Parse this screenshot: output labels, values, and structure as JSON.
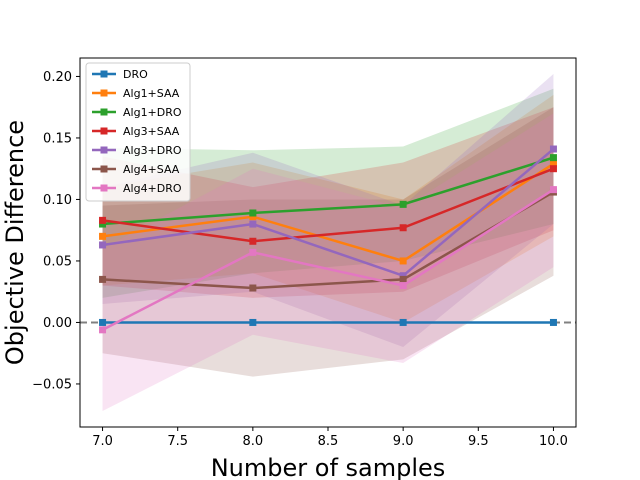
{
  "chart_data": {
    "type": "line",
    "title": "",
    "xlabel": "Number of samples",
    "ylabel": "Objective Difference",
    "xlim": [
      6.85,
      10.15
    ],
    "ylim": [
      -0.085,
      0.215
    ],
    "x": [
      7.0,
      8.0,
      9.0,
      10.0
    ],
    "x_ticks": [
      "7.0",
      "7.5",
      "8.0",
      "8.5",
      "9.0",
      "9.5",
      "10.0"
    ],
    "y_ticks": [
      "−0.05",
      "0.00",
      "0.05",
      "0.10",
      "0.15",
      "0.20"
    ],
    "grid": false,
    "legend_position": "top-left",
    "reference_line": {
      "y": 0.0,
      "style": "dashed",
      "color": "#808080"
    },
    "series": [
      {
        "name": "DRO",
        "color": "#1f77b4",
        "values": [
          0.0,
          0.0,
          0.0,
          0.0
        ],
        "lower": [
          0.0,
          0.0,
          0.0,
          0.0
        ],
        "upper": [
          0.0,
          0.0,
          0.0,
          0.0
        ]
      },
      {
        "name": "Alg1+SAA",
        "color": "#ff7f0e",
        "values": [
          0.07,
          0.086,
          0.05,
          0.129
        ],
        "lower": [
          0.03,
          0.04,
          0.0,
          0.07
        ],
        "upper": [
          0.11,
          0.13,
          0.1,
          0.185
        ]
      },
      {
        "name": "Alg1+DRO",
        "color": "#2ca02c",
        "values": [
          0.08,
          0.089,
          0.096,
          0.134
        ],
        "lower": [
          0.02,
          0.04,
          0.05,
          0.08
        ],
        "upper": [
          0.142,
          0.14,
          0.143,
          0.19
        ]
      },
      {
        "name": "Alg3+SAA",
        "color": "#d62728",
        "values": [
          0.083,
          0.066,
          0.077,
          0.125
        ],
        "lower": [
          0.03,
          0.02,
          0.025,
          0.075
        ],
        "upper": [
          0.135,
          0.11,
          0.13,
          0.175
        ]
      },
      {
        "name": "Alg3+DRO",
        "color": "#9467bd",
        "values": [
          0.063,
          0.08,
          0.038,
          0.141
        ],
        "lower": [
          0.015,
          0.025,
          -0.02,
          0.08
        ],
        "upper": [
          0.11,
          0.138,
          0.095,
          0.202
        ]
      },
      {
        "name": "Alg4+SAA",
        "color": "#8c564b",
        "values": [
          0.035,
          0.028,
          0.035,
          0.106
        ],
        "lower": [
          -0.025,
          -0.044,
          -0.03,
          0.038
        ],
        "upper": [
          0.095,
          0.1,
          0.1,
          0.175
        ]
      },
      {
        "name": "Alg4+DRO",
        "color": "#e377c2",
        "values": [
          -0.006,
          0.057,
          0.03,
          0.108
        ],
        "lower": [
          -0.072,
          -0.01,
          -0.033,
          0.045
        ],
        "upper": [
          0.06,
          0.125,
          0.093,
          0.17
        ]
      }
    ]
  }
}
